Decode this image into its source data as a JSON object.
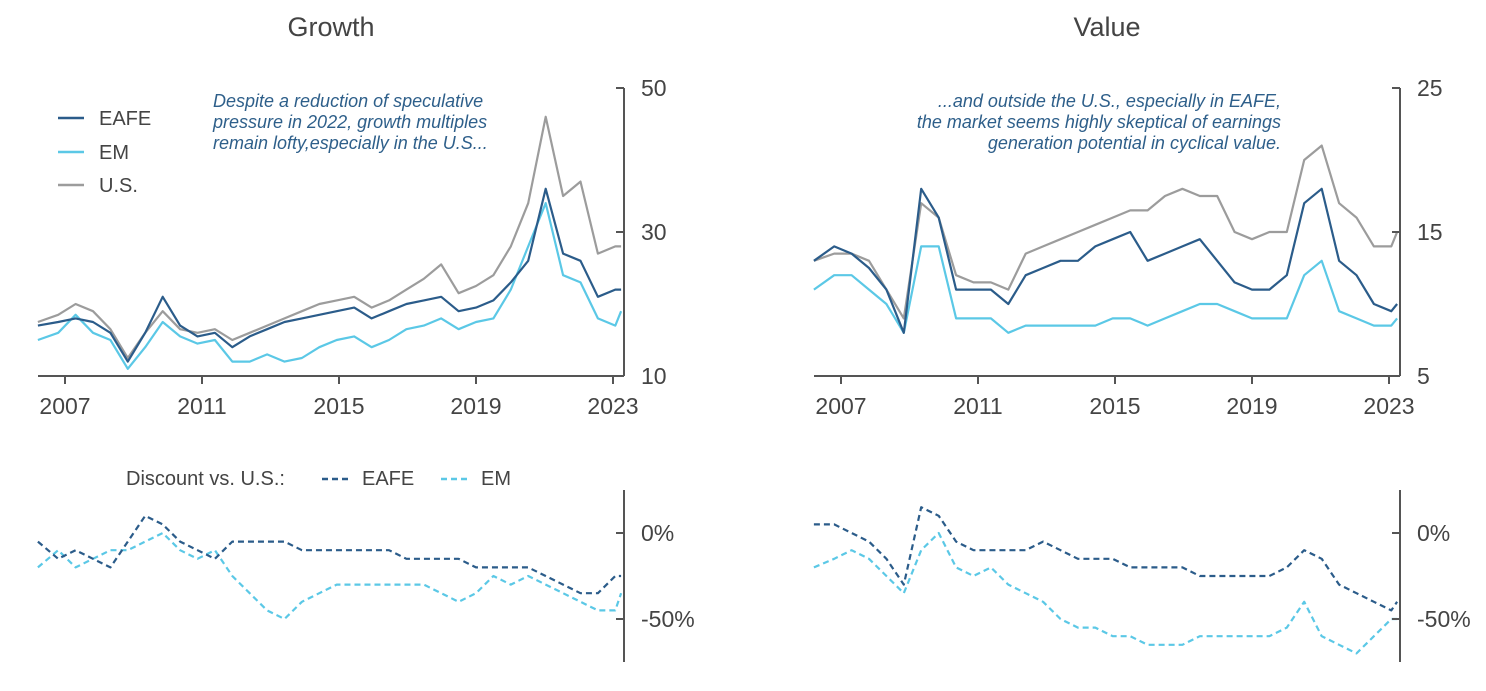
{
  "colors": {
    "eafe": "#2b5c8a",
    "em": "#5bc8e6",
    "us": "#9c9c9c",
    "axis": "#555555"
  },
  "chart_data": [
    {
      "type": "line",
      "title": "Growth",
      "x": [
        "2006-06",
        "2007-01",
        "2007-07",
        "2008-01",
        "2008-07",
        "2009-01",
        "2009-07",
        "2010-01",
        "2010-07",
        "2011-01",
        "2011-07",
        "2012-01",
        "2012-07",
        "2013-01",
        "2013-07",
        "2014-01",
        "2014-07",
        "2015-01",
        "2015-07",
        "2016-01",
        "2016-07",
        "2017-01",
        "2017-07",
        "2018-01",
        "2018-07",
        "2019-01",
        "2019-07",
        "2020-01",
        "2020-07",
        "2021-01",
        "2021-07",
        "2022-01",
        "2022-07",
        "2023-01",
        "2023-03"
      ],
      "series": [
        {
          "name": "EAFE",
          "values": [
            17,
            17.5,
            18,
            17.5,
            16,
            12,
            16,
            21,
            17,
            15.5,
            16,
            14,
            15.5,
            16.5,
            17.5,
            18,
            18.5,
            19,
            19.5,
            18,
            19,
            20,
            20.5,
            21,
            19,
            19.5,
            20.5,
            23,
            26,
            36,
            27,
            26,
            21,
            22,
            22
          ]
        },
        {
          "name": "EM",
          "values": [
            15,
            16,
            18.5,
            16,
            15,
            11,
            14,
            17.5,
            15.5,
            14.5,
            15,
            12,
            12,
            13,
            12,
            12.5,
            14,
            15,
            15.5,
            14,
            15,
            16.5,
            17,
            18,
            16.5,
            17.5,
            18,
            22,
            28,
            34,
            24,
            23,
            18,
            17,
            19
          ]
        },
        {
          "name": "U.S.",
          "values": [
            17.5,
            18.5,
            20,
            19,
            16.5,
            12.5,
            16,
            19,
            16.5,
            16,
            16.5,
            15,
            16,
            17,
            18,
            19,
            20,
            20.5,
            21,
            19.5,
            20.5,
            22,
            23.5,
            25.5,
            21.5,
            22.5,
            24,
            28,
            34,
            46,
            35,
            37,
            27,
            28,
            28
          ]
        }
      ],
      "xlabel": "",
      "ylabel": "",
      "yticks": [
        10,
        30,
        50
      ],
      "ylim": [
        10,
        50
      ],
      "xticks": [
        "2007",
        "2011",
        "2015",
        "2019",
        "2023"
      ],
      "legend": [
        "EAFE",
        "EM",
        "U.S."
      ],
      "annotation": [
        "Despite a reduction of speculative",
        "pressure in 2022, growth multiples",
        "remain lofty,especially in the U.S..."
      ]
    },
    {
      "type": "line",
      "title": "Value",
      "x": [
        "2006-06",
        "2007-01",
        "2007-07",
        "2008-01",
        "2008-07",
        "2009-01",
        "2009-07",
        "2010-01",
        "2010-07",
        "2011-01",
        "2011-07",
        "2012-01",
        "2012-07",
        "2013-01",
        "2013-07",
        "2014-01",
        "2014-07",
        "2015-01",
        "2015-07",
        "2016-01",
        "2016-07",
        "2017-01",
        "2017-07",
        "2018-01",
        "2018-07",
        "2019-01",
        "2019-07",
        "2020-01",
        "2020-07",
        "2021-01",
        "2021-07",
        "2022-01",
        "2022-07",
        "2023-01",
        "2023-03"
      ],
      "series": [
        {
          "name": "EAFE",
          "values": [
            13,
            14,
            13.5,
            12.5,
            11,
            8,
            18,
            16,
            11,
            11,
            11,
            10,
            12,
            12.5,
            13,
            13,
            14,
            14.5,
            15,
            13,
            13.5,
            14,
            14.5,
            13,
            11.5,
            11,
            11,
            12,
            17,
            18,
            13,
            12,
            10,
            9.5,
            10
          ]
        },
        {
          "name": "EM",
          "values": [
            11,
            12,
            12,
            11,
            10,
            8,
            14,
            14,
            9,
            9,
            9,
            8,
            8.5,
            8.5,
            8.5,
            8.5,
            8.5,
            9,
            9,
            8.5,
            9,
            9.5,
            10,
            10,
            9.5,
            9,
            9,
            9,
            12,
            13,
            9.5,
            9,
            8.5,
            8.5,
            9
          ]
        },
        {
          "name": "U.S.",
          "values": [
            13,
            13.5,
            13.5,
            13,
            11,
            9,
            17,
            16,
            12,
            11.5,
            11.5,
            11,
            13.5,
            14,
            14.5,
            15,
            15.5,
            16,
            16.5,
            16.5,
            17.5,
            18,
            17.5,
            17.5,
            15,
            14.5,
            15,
            15,
            20,
            21,
            17,
            16,
            14,
            14,
            15
          ]
        }
      ],
      "xlabel": "",
      "ylabel": "",
      "yticks": [
        5,
        15,
        25
      ],
      "ylim": [
        5,
        25
      ],
      "xticks": [
        "2007",
        "2011",
        "2015",
        "2019",
        "2023"
      ],
      "annotation": [
        "...and outside the U.S., especially in EAFE,",
        "the market seems highly skeptical of earnings",
        "generation potential in cyclical value."
      ]
    },
    {
      "type": "line",
      "title": "",
      "x": [
        "2006-06",
        "2007-01",
        "2007-07",
        "2008-01",
        "2008-07",
        "2009-01",
        "2009-07",
        "2010-01",
        "2010-07",
        "2011-01",
        "2011-07",
        "2012-01",
        "2012-07",
        "2013-01",
        "2013-07",
        "2014-01",
        "2014-07",
        "2015-01",
        "2015-07",
        "2016-01",
        "2016-07",
        "2017-01",
        "2017-07",
        "2018-01",
        "2018-07",
        "2019-01",
        "2019-07",
        "2020-01",
        "2020-07",
        "2021-01",
        "2021-07",
        "2022-01",
        "2022-07",
        "2023-01",
        "2023-03"
      ],
      "series": [
        {
          "name": "EAFE",
          "values": [
            -5,
            -15,
            -10,
            -15,
            -20,
            -5,
            10,
            5,
            -5,
            -10,
            -15,
            -5,
            -5,
            -5,
            -5,
            -10,
            -10,
            -10,
            -10,
            -10,
            -10,
            -15,
            -15,
            -15,
            -15,
            -20,
            -20,
            -20,
            -20,
            -25,
            -30,
            -35,
            -35,
            -25,
            -25
          ]
        },
        {
          "name": "EM",
          "values": [
            -20,
            -10,
            -20,
            -15,
            -10,
            -10,
            -5,
            0,
            -10,
            -15,
            -10,
            -25,
            -35,
            -45,
            -50,
            -40,
            -35,
            -30,
            -30,
            -30,
            -30,
            -30,
            -30,
            -35,
            -40,
            -35,
            -25,
            -30,
            -25,
            -30,
            -35,
            -40,
            -45,
            -45,
            -35
          ]
        }
      ],
      "xlabel": "",
      "ylabel": "",
      "yticks": [
        "0%",
        "-50%"
      ],
      "ylim": [
        -75,
        25
      ],
      "legend_title": "Discount vs. U.S.:",
      "legend": [
        "EAFE",
        "EM"
      ]
    },
    {
      "type": "line",
      "title": "",
      "x": [
        "2006-06",
        "2007-01",
        "2007-07",
        "2008-01",
        "2008-07",
        "2009-01",
        "2009-07",
        "2010-01",
        "2010-07",
        "2011-01",
        "2011-07",
        "2012-01",
        "2012-07",
        "2013-01",
        "2013-07",
        "2014-01",
        "2014-07",
        "2015-01",
        "2015-07",
        "2016-01",
        "2016-07",
        "2017-01",
        "2017-07",
        "2018-01",
        "2018-07",
        "2019-01",
        "2019-07",
        "2020-01",
        "2020-07",
        "2021-01",
        "2021-07",
        "2022-01",
        "2022-07",
        "2023-01",
        "2023-03"
      ],
      "series": [
        {
          "name": "EAFE",
          "values": [
            5,
            5,
            0,
            -5,
            -15,
            -30,
            15,
            10,
            -5,
            -10,
            -10,
            -10,
            -10,
            -5,
            -10,
            -15,
            -15,
            -15,
            -20,
            -20,
            -20,
            -20,
            -25,
            -25,
            -25,
            -25,
            -25,
            -20,
            -10,
            -15,
            -30,
            -35,
            -40,
            -45,
            -40
          ]
        },
        {
          "name": "EM",
          "values": [
            -20,
            -15,
            -10,
            -15,
            -25,
            -35,
            -10,
            0,
            -20,
            -25,
            -20,
            -30,
            -35,
            -40,
            -50,
            -55,
            -55,
            -60,
            -60,
            -65,
            -65,
            -65,
            -60,
            -60,
            -60,
            -60,
            -60,
            -55,
            -40,
            -60,
            -65,
            -70,
            -60,
            -50,
            -50
          ]
        }
      ],
      "xlabel": "",
      "ylabel": "",
      "yticks": [
        "0%",
        "-50%"
      ],
      "ylim": [
        -75,
        25
      ]
    }
  ]
}
